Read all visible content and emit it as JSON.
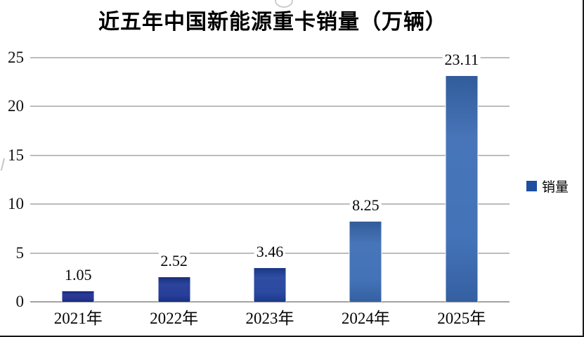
{
  "title": "近五年中国新能源重卡销量（万辆）",
  "legend": {
    "label": "销量",
    "swatch_color": "#1d4e9f"
  },
  "colors": {
    "gridline": "#bcbcbc",
    "axis_line": "#a3a3a3",
    "frame_border": "#1b1b1b",
    "background": "#ffffff",
    "text": "#050505"
  },
  "chart_data": {
    "type": "bar",
    "title": "近五年中国新能源重卡销量（万辆）",
    "categories": [
      "2021年",
      "2022年",
      "2023年",
      "2024年",
      "2025年"
    ],
    "series": [
      {
        "name": "销量",
        "values": [
          1.05,
          2.52,
          3.46,
          8.25,
          23.11
        ]
      }
    ],
    "value_labels": [
      "1.05",
      "2.52",
      "3.46",
      "8.25",
      "23.11"
    ],
    "xlabel": "",
    "ylabel": "",
    "ylim": [
      0,
      25
    ],
    "yticks": [
      0,
      5,
      10,
      15,
      20,
      25
    ],
    "ytick_labels": [
      "0",
      "5",
      "10",
      "15",
      "20",
      "25"
    ],
    "grid": true,
    "legend_entries": [
      "销量"
    ],
    "legend_position": "right-middle",
    "bar_colors": [
      "#1a2b8d",
      "#1c3594",
      "#1f409b",
      "#3a6bb4",
      "#3a6bb4"
    ]
  }
}
